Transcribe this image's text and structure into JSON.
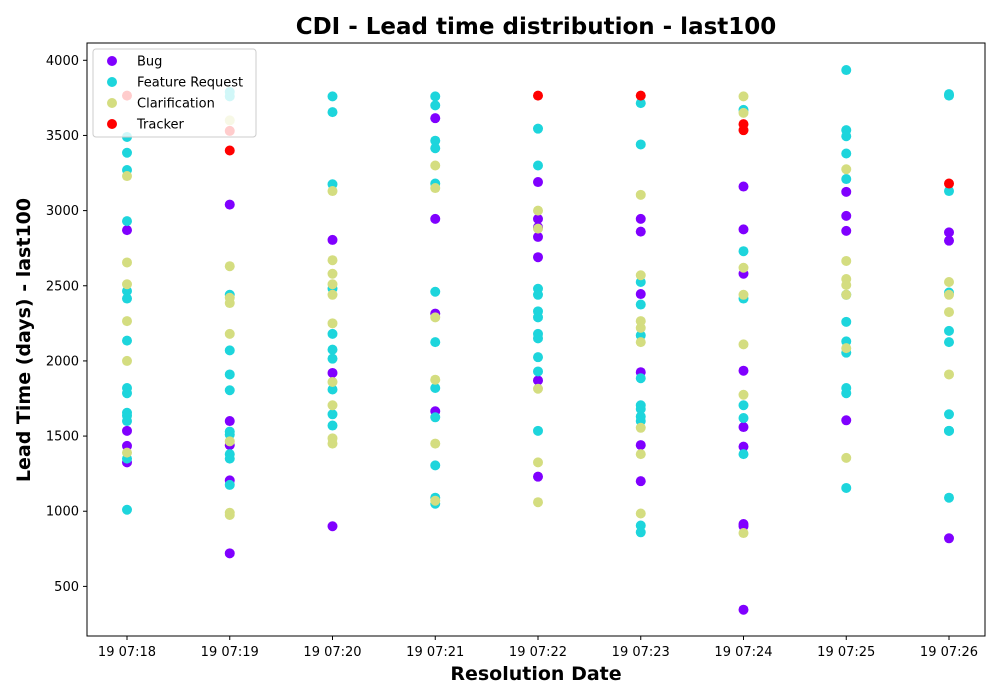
{
  "chart_data": {
    "type": "scatter",
    "title": "CDI - Lead time distribution - last100",
    "xlabel": "Resolution Date",
    "ylabel": "Lead Time (days) - last100",
    "x_categories": [
      "19 07:18",
      "19 07:19",
      "19 07:20",
      "19 07:21",
      "19 07:22",
      "19 07:23",
      "19 07:24",
      "19 07:25",
      "19 07:26"
    ],
    "ylim": [
      170,
      4115
    ],
    "yticks": [
      500,
      1000,
      1500,
      2000,
      2500,
      3000,
      3500,
      4000
    ],
    "grid": false,
    "legend_position": "top-left",
    "series": [
      {
        "name": "Bug",
        "color": "#8000ff",
        "points": [
          [
            "19 07:18",
            2870
          ],
          [
            "19 07:18",
            1535
          ],
          [
            "19 07:18",
            1435
          ],
          [
            "19 07:18",
            1325
          ],
          [
            "19 07:19",
            3040
          ],
          [
            "19 07:19",
            1600
          ],
          [
            "19 07:19",
            1440
          ],
          [
            "19 07:19",
            1205
          ],
          [
            "19 07:19",
            720
          ],
          [
            "19 07:20",
            2805
          ],
          [
            "19 07:20",
            1920
          ],
          [
            "19 07:20",
            900
          ],
          [
            "19 07:21",
            3615
          ],
          [
            "19 07:21",
            2945
          ],
          [
            "19 07:21",
            2315
          ],
          [
            "19 07:21",
            1665
          ],
          [
            "19 07:22",
            3190
          ],
          [
            "19 07:22",
            2945
          ],
          [
            "19 07:22",
            2890
          ],
          [
            "19 07:22",
            2825
          ],
          [
            "19 07:22",
            2690
          ],
          [
            "19 07:22",
            1870
          ],
          [
            "19 07:22",
            1230
          ],
          [
            "19 07:23",
            2945
          ],
          [
            "19 07:23",
            2860
          ],
          [
            "19 07:23",
            2445
          ],
          [
            "19 07:23",
            1925
          ],
          [
            "19 07:23",
            1440
          ],
          [
            "19 07:23",
            1200
          ],
          [
            "19 07:24",
            3160
          ],
          [
            "19 07:24",
            2875
          ],
          [
            "19 07:24",
            2580
          ],
          [
            "19 07:24",
            1935
          ],
          [
            "19 07:24",
            1560
          ],
          [
            "19 07:24",
            1430
          ],
          [
            "19 07:24",
            915
          ],
          [
            "19 07:24",
            900
          ],
          [
            "19 07:24",
            345
          ],
          [
            "19 07:25",
            3125
          ],
          [
            "19 07:25",
            2965
          ],
          [
            "19 07:25",
            2865
          ],
          [
            "19 07:25",
            1605
          ],
          [
            "19 07:26",
            2855
          ],
          [
            "19 07:26",
            2800
          ],
          [
            "19 07:26",
            820
          ]
        ]
      },
      {
        "name": "Feature Request",
        "color": "#1dd5dc",
        "points": [
          [
            "19 07:18",
            3490
          ],
          [
            "19 07:18",
            3385
          ],
          [
            "19 07:18",
            3270
          ],
          [
            "19 07:18",
            2930
          ],
          [
            "19 07:18",
            2465
          ],
          [
            "19 07:18",
            2415
          ],
          [
            "19 07:18",
            2135
          ],
          [
            "19 07:18",
            1820
          ],
          [
            "19 07:18",
            1785
          ],
          [
            "19 07:18",
            1655
          ],
          [
            "19 07:18",
            1635
          ],
          [
            "19 07:18",
            1600
          ],
          [
            "19 07:18",
            1350
          ],
          [
            "19 07:18",
            1010
          ],
          [
            "19 07:19",
            3790
          ],
          [
            "19 07:19",
            3760
          ],
          [
            "19 07:19",
            2440
          ],
          [
            "19 07:19",
            2070
          ],
          [
            "19 07:19",
            1910
          ],
          [
            "19 07:19",
            1805
          ],
          [
            "19 07:19",
            1530
          ],
          [
            "19 07:19",
            1510
          ],
          [
            "19 07:19",
            1380
          ],
          [
            "19 07:19",
            1350
          ],
          [
            "19 07:19",
            1175
          ],
          [
            "19 07:20",
            3760
          ],
          [
            "19 07:20",
            3655
          ],
          [
            "19 07:20",
            3175
          ],
          [
            "19 07:20",
            2480
          ],
          [
            "19 07:20",
            2180
          ],
          [
            "19 07:20",
            2075
          ],
          [
            "19 07:20",
            2015
          ],
          [
            "19 07:20",
            1810
          ],
          [
            "19 07:20",
            1645
          ],
          [
            "19 07:20",
            1570
          ],
          [
            "19 07:21",
            3760
          ],
          [
            "19 07:21",
            3700
          ],
          [
            "19 07:21",
            3465
          ],
          [
            "19 07:21",
            3415
          ],
          [
            "19 07:21",
            3180
          ],
          [
            "19 07:21",
            2460
          ],
          [
            "19 07:21",
            2125
          ],
          [
            "19 07:21",
            1820
          ],
          [
            "19 07:21",
            1625
          ],
          [
            "19 07:21",
            1305
          ],
          [
            "19 07:21",
            1090
          ],
          [
            "19 07:21",
            1050
          ],
          [
            "19 07:22",
            3545
          ],
          [
            "19 07:22",
            3300
          ],
          [
            "19 07:22",
            2480
          ],
          [
            "19 07:22",
            2440
          ],
          [
            "19 07:22",
            2330
          ],
          [
            "19 07:22",
            2290
          ],
          [
            "19 07:22",
            2180
          ],
          [
            "19 07:22",
            2150
          ],
          [
            "19 07:22",
            2025
          ],
          [
            "19 07:22",
            1930
          ],
          [
            "19 07:22",
            1535
          ],
          [
            "19 07:23",
            3715
          ],
          [
            "19 07:23",
            3440
          ],
          [
            "19 07:23",
            2525
          ],
          [
            "19 07:23",
            2375
          ],
          [
            "19 07:23",
            2170
          ],
          [
            "19 07:23",
            1885
          ],
          [
            "19 07:23",
            1705
          ],
          [
            "19 07:23",
            1680
          ],
          [
            "19 07:23",
            1630
          ],
          [
            "19 07:23",
            1600
          ],
          [
            "19 07:23",
            905
          ],
          [
            "19 07:23",
            860
          ],
          [
            "19 07:24",
            3670
          ],
          [
            "19 07:24",
            2730
          ],
          [
            "19 07:24",
            2415
          ],
          [
            "19 07:24",
            1705
          ],
          [
            "19 07:24",
            1620
          ],
          [
            "19 07:24",
            1380
          ],
          [
            "19 07:25",
            3935
          ],
          [
            "19 07:25",
            3535
          ],
          [
            "19 07:25",
            3495
          ],
          [
            "19 07:25",
            3380
          ],
          [
            "19 07:25",
            3210
          ],
          [
            "19 07:25",
            2440
          ],
          [
            "19 07:25",
            2260
          ],
          [
            "19 07:25",
            2130
          ],
          [
            "19 07:25",
            2055
          ],
          [
            "19 07:25",
            1820
          ],
          [
            "19 07:25",
            1785
          ],
          [
            "19 07:25",
            1155
          ],
          [
            "19 07:26",
            3775
          ],
          [
            "19 07:26",
            3765
          ],
          [
            "19 07:26",
            3130
          ],
          [
            "19 07:26",
            2455
          ],
          [
            "19 07:26",
            2200
          ],
          [
            "19 07:26",
            2125
          ],
          [
            "19 07:26",
            1645
          ],
          [
            "19 07:26",
            1535
          ],
          [
            "19 07:26",
            1535
          ],
          [
            "19 07:26",
            1090
          ]
        ]
      },
      {
        "name": "Clarification",
        "color": "#d4dd80",
        "points": [
          [
            "19 07:18",
            3230
          ],
          [
            "19 07:18",
            2655
          ],
          [
            "19 07:18",
            2510
          ],
          [
            "19 07:18",
            2265
          ],
          [
            "19 07:18",
            2000
          ],
          [
            "19 07:18",
            1390
          ],
          [
            "19 07:19",
            3600
          ],
          [
            "19 07:19",
            2630
          ],
          [
            "19 07:19",
            2420
          ],
          [
            "19 07:19",
            2385
          ],
          [
            "19 07:19",
            2180
          ],
          [
            "19 07:19",
            1465
          ],
          [
            "19 07:19",
            990
          ],
          [
            "19 07:19",
            975
          ],
          [
            "19 07:20",
            3130
          ],
          [
            "19 07:20",
            2670
          ],
          [
            "19 07:20",
            2580
          ],
          [
            "19 07:20",
            2510
          ],
          [
            "19 07:20",
            2440
          ],
          [
            "19 07:20",
            2250
          ],
          [
            "19 07:20",
            1860
          ],
          [
            "19 07:20",
            1705
          ],
          [
            "19 07:20",
            1485
          ],
          [
            "19 07:20",
            1450
          ],
          [
            "19 07:21",
            3300
          ],
          [
            "19 07:21",
            3150
          ],
          [
            "19 07:21",
            2290
          ],
          [
            "19 07:21",
            1875
          ],
          [
            "19 07:21",
            1450
          ],
          [
            "19 07:21",
            1070
          ],
          [
            "19 07:22",
            3000
          ],
          [
            "19 07:22",
            2880
          ],
          [
            "19 07:22",
            1815
          ],
          [
            "19 07:22",
            1325
          ],
          [
            "19 07:22",
            1060
          ],
          [
            "19 07:23",
            3105
          ],
          [
            "19 07:23",
            2570
          ],
          [
            "19 07:23",
            2265
          ],
          [
            "19 07:23",
            2220
          ],
          [
            "19 07:23",
            2125
          ],
          [
            "19 07:23",
            1555
          ],
          [
            "19 07:23",
            1380
          ],
          [
            "19 07:23",
            985
          ],
          [
            "19 07:24",
            3760
          ],
          [
            "19 07:24",
            3650
          ],
          [
            "19 07:24",
            2620
          ],
          [
            "19 07:24",
            2440
          ],
          [
            "19 07:24",
            2110
          ],
          [
            "19 07:24",
            1775
          ],
          [
            "19 07:24",
            855
          ],
          [
            "19 07:25",
            3275
          ],
          [
            "19 07:25",
            2665
          ],
          [
            "19 07:25",
            2545
          ],
          [
            "19 07:25",
            2505
          ],
          [
            "19 07:25",
            2440
          ],
          [
            "19 07:25",
            2085
          ],
          [
            "19 07:25",
            1355
          ],
          [
            "19 07:26",
            2525
          ],
          [
            "19 07:26",
            2440
          ],
          [
            "19 07:26",
            2325
          ],
          [
            "19 07:26",
            1910
          ]
        ]
      },
      {
        "name": "Tracker",
        "color": "#ff0000",
        "points": [
          [
            "19 07:18",
            3765
          ],
          [
            "19 07:19",
            3530
          ],
          [
            "19 07:19",
            3400
          ],
          [
            "19 07:22",
            3765
          ],
          [
            "19 07:23",
            3765
          ],
          [
            "19 07:24",
            3575
          ],
          [
            "19 07:24",
            3535
          ],
          [
            "19 07:26",
            3180
          ]
        ]
      }
    ]
  }
}
